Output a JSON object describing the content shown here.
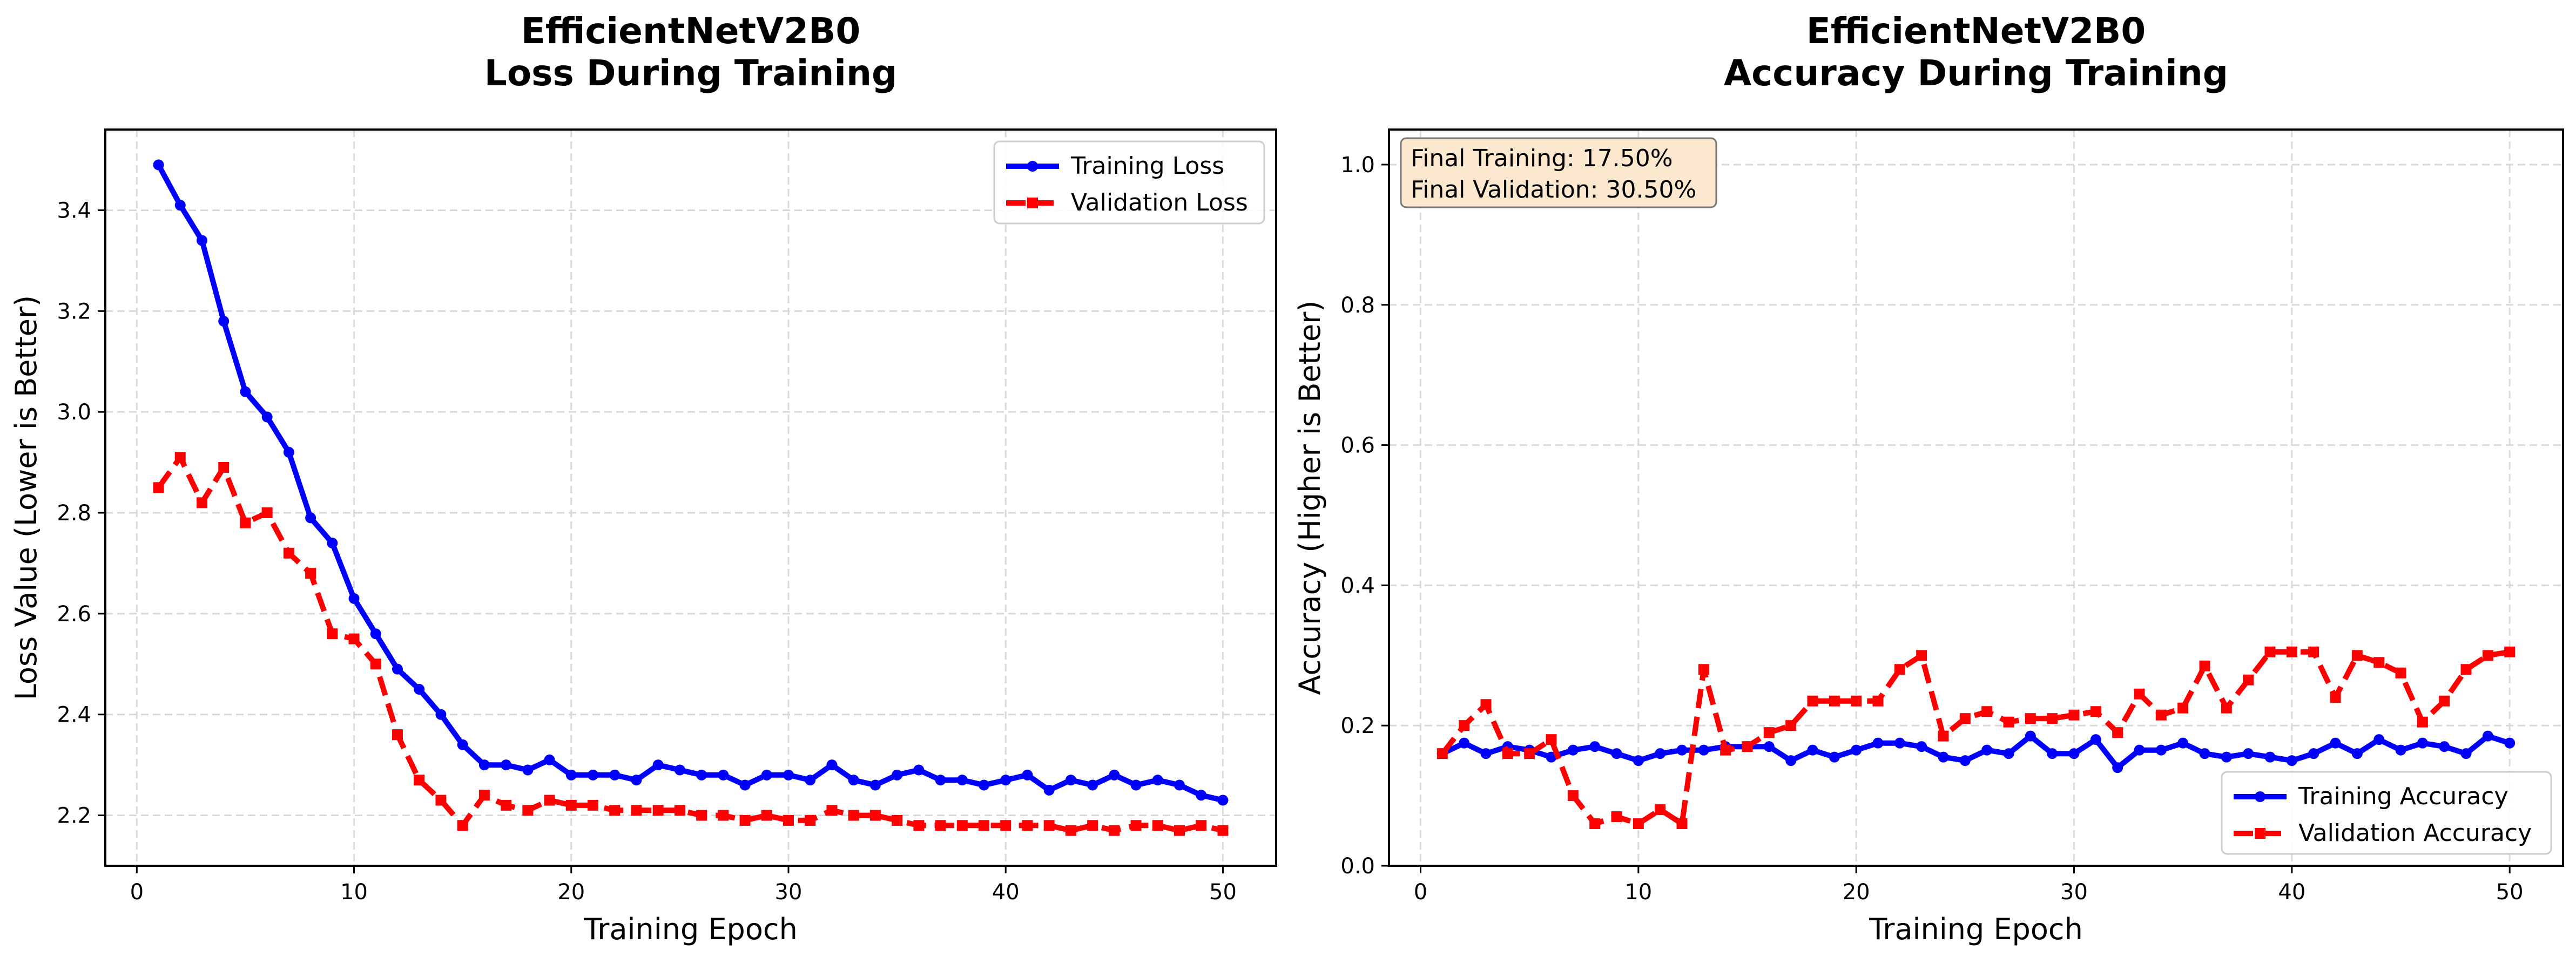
{
  "chart_data": [
    {
      "type": "line",
      "title_line1": "EfficientNetV2B0",
      "title_line2": "Loss During Training",
      "xlabel": "Training Epoch",
      "ylabel": "Loss Value (Lower is Better)",
      "xlim": [
        -1.45,
        52.45
      ],
      "ylim": [
        2.1,
        3.56
      ],
      "xticks": [
        0,
        10,
        20,
        30,
        40,
        50
      ],
      "yticks": [
        2.2,
        2.4,
        2.6,
        2.8,
        3.0,
        3.2,
        3.4
      ],
      "grid": true,
      "legend_position": "upper right",
      "x": [
        1,
        2,
        3,
        4,
        5,
        6,
        7,
        8,
        9,
        10,
        11,
        12,
        13,
        14,
        15,
        16,
        17,
        18,
        19,
        20,
        21,
        22,
        23,
        24,
        25,
        26,
        27,
        28,
        29,
        30,
        31,
        32,
        33,
        34,
        35,
        36,
        37,
        38,
        39,
        40,
        41,
        42,
        43,
        44,
        45,
        46,
        47,
        48,
        49,
        50
      ],
      "series": [
        {
          "name": "Training Loss",
          "color": "#0000ff",
          "linestyle": "solid",
          "marker": "circle",
          "values": [
            3.49,
            3.41,
            3.34,
            3.18,
            3.04,
            2.99,
            2.92,
            2.79,
            2.74,
            2.63,
            2.56,
            2.49,
            2.45,
            2.4,
            2.34,
            2.3,
            2.3,
            2.29,
            2.31,
            2.28,
            2.28,
            2.28,
            2.27,
            2.3,
            2.29,
            2.28,
            2.28,
            2.26,
            2.28,
            2.28,
            2.27,
            2.3,
            2.27,
            2.26,
            2.28,
            2.29,
            2.27,
            2.27,
            2.26,
            2.27,
            2.28,
            2.25,
            2.27,
            2.26,
            2.28,
            2.26,
            2.27,
            2.26,
            2.24,
            2.23
          ]
        },
        {
          "name": "Validation Loss",
          "color": "#ff0000",
          "linestyle": "dashed",
          "marker": "square",
          "values": [
            2.85,
            2.91,
            2.82,
            2.89,
            2.78,
            2.8,
            2.72,
            2.68,
            2.56,
            2.55,
            2.5,
            2.36,
            2.27,
            2.23,
            2.18,
            2.24,
            2.22,
            2.21,
            2.23,
            2.22,
            2.22,
            2.21,
            2.21,
            2.21,
            2.21,
            2.2,
            2.2,
            2.19,
            2.2,
            2.19,
            2.19,
            2.21,
            2.2,
            2.2,
            2.19,
            2.18,
            2.18,
            2.18,
            2.18,
            2.18,
            2.18,
            2.18,
            2.17,
            2.18,
            2.17,
            2.18,
            2.18,
            2.17,
            2.18,
            2.17
          ]
        }
      ]
    },
    {
      "type": "line",
      "title_line1": "EfficientNetV2B0",
      "title_line2": "Accuracy During Training",
      "xlabel": "Training Epoch",
      "ylabel": "Accuracy (Higher is Better)",
      "xlim": [
        -1.45,
        52.45
      ],
      "ylim": [
        0.0,
        1.05
      ],
      "xticks": [
        0,
        10,
        20,
        30,
        40,
        50
      ],
      "yticks": [
        0.0,
        0.2,
        0.4,
        0.6,
        0.8,
        1.0
      ],
      "grid": true,
      "legend_position": "lower right",
      "annotation_lines": [
        "Final Training: 17.50%",
        "Final Validation: 30.50%"
      ],
      "annotation_position": "upper left",
      "x": [
        1,
        2,
        3,
        4,
        5,
        6,
        7,
        8,
        9,
        10,
        11,
        12,
        13,
        14,
        15,
        16,
        17,
        18,
        19,
        20,
        21,
        22,
        23,
        24,
        25,
        26,
        27,
        28,
        29,
        30,
        31,
        32,
        33,
        34,
        35,
        36,
        37,
        38,
        39,
        40,
        41,
        42,
        43,
        44,
        45,
        46,
        47,
        48,
        49,
        50
      ],
      "series": [
        {
          "name": "Training Accuracy",
          "color": "#0000ff",
          "linestyle": "solid",
          "marker": "circle",
          "values": [
            0.16,
            0.175,
            0.16,
            0.17,
            0.165,
            0.155,
            0.165,
            0.17,
            0.16,
            0.15,
            0.16,
            0.165,
            0.165,
            0.17,
            0.17,
            0.17,
            0.15,
            0.165,
            0.155,
            0.165,
            0.175,
            0.175,
            0.17,
            0.155,
            0.15,
            0.165,
            0.16,
            0.185,
            0.16,
            0.16,
            0.18,
            0.14,
            0.165,
            0.165,
            0.175,
            0.16,
            0.155,
            0.16,
            0.155,
            0.15,
            0.16,
            0.175,
            0.16,
            0.18,
            0.165,
            0.175,
            0.17,
            0.16,
            0.185,
            0.175
          ]
        },
        {
          "name": "Validation Accuracy",
          "color": "#ff0000",
          "linestyle": "dashed",
          "marker": "square",
          "values": [
            0.16,
            0.2,
            0.23,
            0.16,
            0.16,
            0.18,
            0.1,
            0.06,
            0.07,
            0.06,
            0.08,
            0.06,
            0.28,
            0.165,
            0.17,
            0.19,
            0.2,
            0.235,
            0.235,
            0.235,
            0.235,
            0.28,
            0.3,
            0.185,
            0.21,
            0.22,
            0.205,
            0.21,
            0.21,
            0.215,
            0.22,
            0.19,
            0.245,
            0.215,
            0.225,
            0.285,
            0.225,
            0.265,
            0.305,
            0.305,
            0.305,
            0.24,
            0.3,
            0.29,
            0.275,
            0.205,
            0.235,
            0.28,
            0.3,
            0.305
          ]
        }
      ]
    }
  ]
}
